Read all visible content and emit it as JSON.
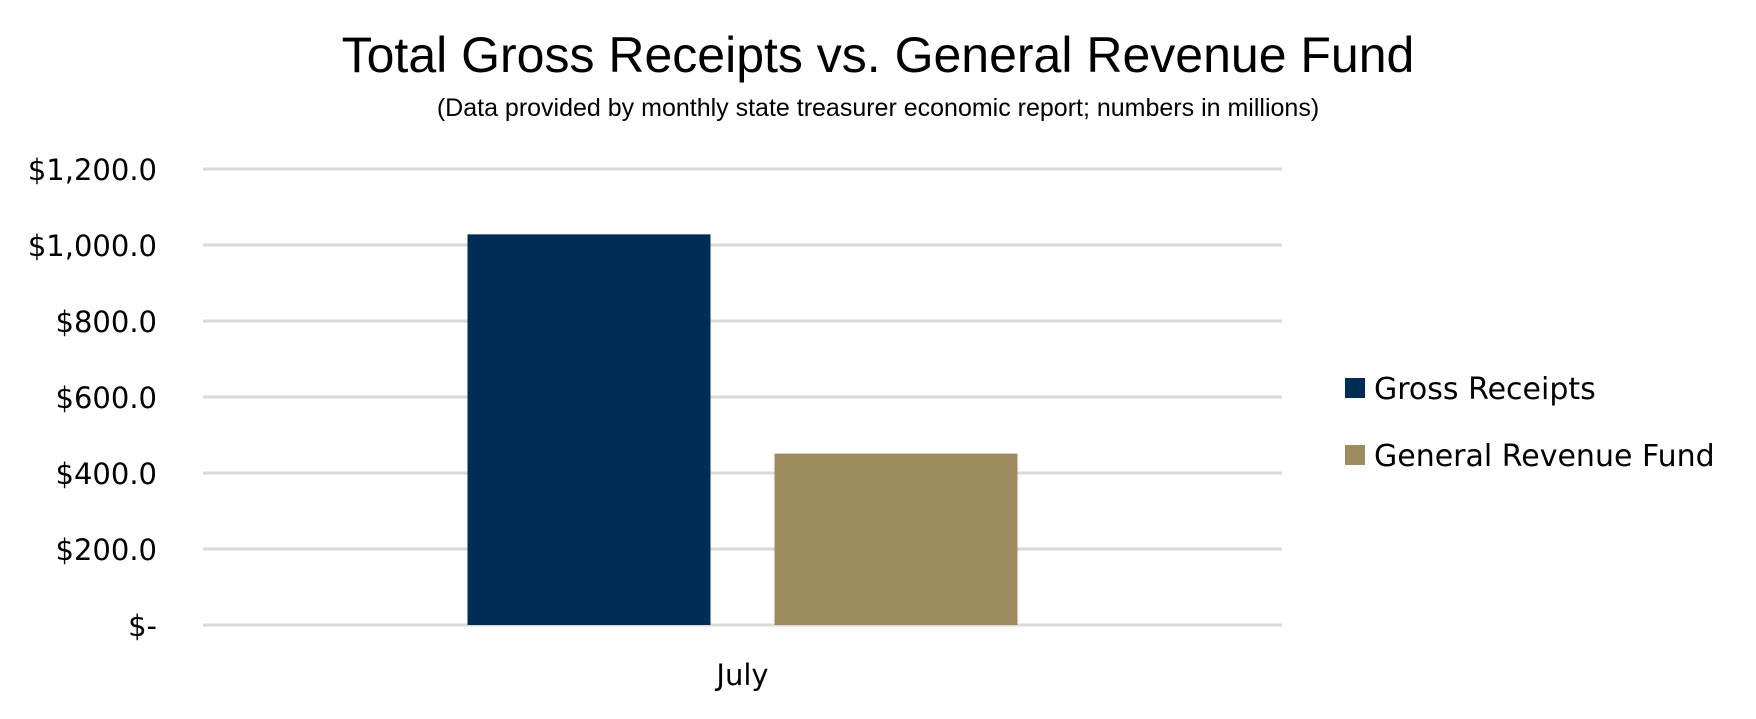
{
  "chart_data": {
    "type": "bar",
    "title": "Total Gross Receipts vs. General Revenue Fund",
    "subtitle": "(Data provided by monthly state treasurer economic report; numbers in millions)",
    "categories": [
      "July"
    ],
    "series": [
      {
        "name": "Gross Receipts",
        "values": [
          1028
        ],
        "color": "#002D56"
      },
      {
        "name": "General Revenue Fund",
        "values": [
          451
        ],
        "color": "#9E8C5F"
      }
    ],
    "ylim": [
      0,
      1200
    ],
    "yticks": [
      0,
      200,
      400,
      600,
      800,
      1000,
      1200
    ],
    "ytick_labels": [
      "$-",
      "$200.0",
      "$400.0",
      "$600.0",
      "$800.0",
      "$1,000.0",
      "$1,200.0"
    ],
    "xlabel": "",
    "ylabel": "",
    "grid": true,
    "gridline_color": "#D9D9D9",
    "legend_position": "right"
  }
}
